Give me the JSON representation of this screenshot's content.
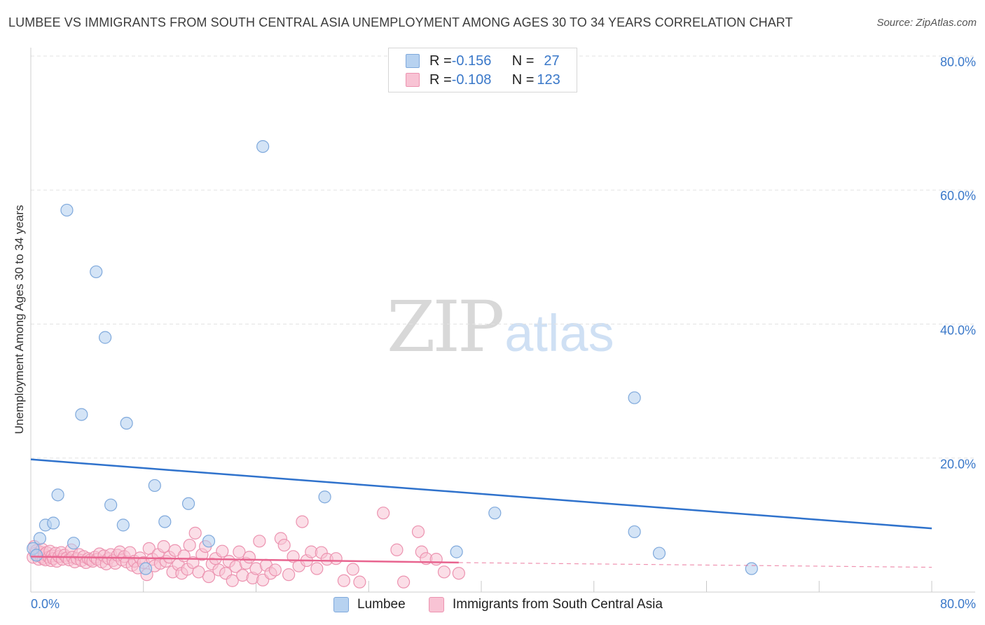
{
  "title": "LUMBEE VS IMMIGRANTS FROM SOUTH CENTRAL ASIA UNEMPLOYMENT AMONG AGES 30 TO 34 YEARS CORRELATION CHART",
  "source": "Source: ZipAtlas.com",
  "watermark": {
    "zip": "ZIP",
    "atlas": "atlas"
  },
  "colors": {
    "lumbee_fill": "#b7d2f0",
    "lumbee_stroke": "#7fa9dc",
    "lumbee_line": "#2f72cc",
    "immig_fill": "#f8c3d4",
    "immig_stroke": "#ec93b0",
    "immig_line": "#e8648f",
    "grid": "#e3e3e3",
    "tick_text": "#3a78c9"
  },
  "legend": {
    "rows": [
      {
        "r_label": "R = ",
        "r_value": "-0.156",
        "n_label": "N = ",
        "n_value": "27"
      },
      {
        "r_label": "R = ",
        "r_value": "-0.108",
        "n_label": "N = ",
        "n_value": "123"
      }
    ]
  },
  "chart_data": {
    "type": "scatter",
    "title": "LUMBEE VS IMMIGRANTS FROM SOUTH CENTRAL ASIA UNEMPLOYMENT AMONG AGES 30 TO 34 YEARS CORRELATION CHART",
    "xlabel": "",
    "ylabel": "Unemployment Among Ages 30 to 34 years",
    "xlim": [
      0,
      80
    ],
    "ylim": [
      0,
      82
    ],
    "x_tick_labels": [
      "0.0%",
      "80.0%"
    ],
    "y_ticks": [
      20,
      40,
      60,
      80
    ],
    "y_tick_labels": [
      "20.0%",
      "40.0%",
      "60.0%",
      "80.0%"
    ],
    "grid": true,
    "legend_position": "top-center",
    "series": [
      {
        "name": "Lumbee",
        "trend": {
          "x": [
            0,
            80
          ],
          "y": [
            19.8,
            9.5
          ]
        },
        "points": [
          [
            0.2,
            6.5
          ],
          [
            0.5,
            5.5
          ],
          [
            0.8,
            8.0
          ],
          [
            1.3,
            10.0
          ],
          [
            2.0,
            10.3
          ],
          [
            2.4,
            14.5
          ],
          [
            3.2,
            57.0
          ],
          [
            3.8,
            7.3
          ],
          [
            4.5,
            26.5
          ],
          [
            5.8,
            47.8
          ],
          [
            6.6,
            38.0
          ],
          [
            7.1,
            13.0
          ],
          [
            8.2,
            10.0
          ],
          [
            8.5,
            25.2
          ],
          [
            10.2,
            3.5
          ],
          [
            11.0,
            15.9
          ],
          [
            11.9,
            10.5
          ],
          [
            14.0,
            13.2
          ],
          [
            15.8,
            7.6
          ],
          [
            20.6,
            66.5
          ],
          [
            26.1,
            14.2
          ],
          [
            37.8,
            6.0
          ],
          [
            41.2,
            11.8
          ],
          [
            53.6,
            29.0
          ],
          [
            53.6,
            9.0
          ],
          [
            55.8,
            5.8
          ],
          [
            64.0,
            3.5
          ]
        ]
      },
      {
        "name": "Immigrants from South Central Asia",
        "trend": {
          "x": [
            0,
            38
          ],
          "y": [
            5.3,
            4.4
          ]
        },
        "trend_dashed": {
          "x": [
            38,
            80
          ],
          "y": [
            4.4,
            3.7
          ]
        },
        "points": [
          [
            0.2,
            5.2
          ],
          [
            0.3,
            6.8
          ],
          [
            0.4,
            5.8
          ],
          [
            0.5,
            6.2
          ],
          [
            0.6,
            5.5
          ],
          [
            0.7,
            4.9
          ],
          [
            0.8,
            6.0
          ],
          [
            0.9,
            5.3
          ],
          [
            1.0,
            6.4
          ],
          [
            1.1,
            5.0
          ],
          [
            1.2,
            5.6
          ],
          [
            1.3,
            4.8
          ],
          [
            1.4,
            5.9
          ],
          [
            1.6,
            5.2
          ],
          [
            1.7,
            6.1
          ],
          [
            1.8,
            4.7
          ],
          [
            1.9,
            5.4
          ],
          [
            2.0,
            5.0
          ],
          [
            2.2,
            5.8
          ],
          [
            2.3,
            4.6
          ],
          [
            2.5,
            5.3
          ],
          [
            2.7,
            5.9
          ],
          [
            2.8,
            4.9
          ],
          [
            3.0,
            5.5
          ],
          [
            3.2,
            5.1
          ],
          [
            3.4,
            4.8
          ],
          [
            3.6,
            6.3
          ],
          [
            3.7,
            5.2
          ],
          [
            3.9,
            4.5
          ],
          [
            4.1,
            5.0
          ],
          [
            4.3,
            5.6
          ],
          [
            4.5,
            4.7
          ],
          [
            4.7,
            5.3
          ],
          [
            4.9,
            4.4
          ],
          [
            5.1,
            5.0
          ],
          [
            5.3,
            4.8
          ],
          [
            5.5,
            4.6
          ],
          [
            5.7,
            5.2
          ],
          [
            5.9,
            4.9
          ],
          [
            6.1,
            5.7
          ],
          [
            6.3,
            4.5
          ],
          [
            6.5,
            5.4
          ],
          [
            6.7,
            4.2
          ],
          [
            6.9,
            5.0
          ],
          [
            7.1,
            5.6
          ],
          [
            7.3,
            4.7
          ],
          [
            7.5,
            4.3
          ],
          [
            7.7,
            5.5
          ],
          [
            7.9,
            6.0
          ],
          [
            8.1,
            4.8
          ],
          [
            8.3,
            5.3
          ],
          [
            8.5,
            4.5
          ],
          [
            8.8,
            5.9
          ],
          [
            9.0,
            4.0
          ],
          [
            9.2,
            4.6
          ],
          [
            9.5,
            3.6
          ],
          [
            9.7,
            5.1
          ],
          [
            10.0,
            4.4
          ],
          [
            10.3,
            2.6
          ],
          [
            10.5,
            6.5
          ],
          [
            10.8,
            4.9
          ],
          [
            11.0,
            3.9
          ],
          [
            11.3,
            5.6
          ],
          [
            11.5,
            4.3
          ],
          [
            11.8,
            6.8
          ],
          [
            12.0,
            4.6
          ],
          [
            12.3,
            5.2
          ],
          [
            12.6,
            3.0
          ],
          [
            12.8,
            6.2
          ],
          [
            13.1,
            4.1
          ],
          [
            13.4,
            2.8
          ],
          [
            13.6,
            5.4
          ],
          [
            13.9,
            3.4
          ],
          [
            14.1,
            7.0
          ],
          [
            14.4,
            4.4
          ],
          [
            14.6,
            8.8
          ],
          [
            14.9,
            3.0
          ],
          [
            15.2,
            5.6
          ],
          [
            15.5,
            6.8
          ],
          [
            15.8,
            2.3
          ],
          [
            16.1,
            4.2
          ],
          [
            16.4,
            5.0
          ],
          [
            16.7,
            3.3
          ],
          [
            17.0,
            6.1
          ],
          [
            17.3,
            2.8
          ],
          [
            17.6,
            4.6
          ],
          [
            17.9,
            1.7
          ],
          [
            18.2,
            3.8
          ],
          [
            18.5,
            6.0
          ],
          [
            18.8,
            2.5
          ],
          [
            19.1,
            4.3
          ],
          [
            19.4,
            5.2
          ],
          [
            19.7,
            2.1
          ],
          [
            20.0,
            3.5
          ],
          [
            20.3,
            7.6
          ],
          [
            20.6,
            1.8
          ],
          [
            20.9,
            4.0
          ],
          [
            21.3,
            2.8
          ],
          [
            21.7,
            3.3
          ],
          [
            22.2,
            8.0
          ],
          [
            22.5,
            7.0
          ],
          [
            22.9,
            2.6
          ],
          [
            23.3,
            5.3
          ],
          [
            23.8,
            3.9
          ],
          [
            24.1,
            10.5
          ],
          [
            24.5,
            4.7
          ],
          [
            24.9,
            6.0
          ],
          [
            25.4,
            3.5
          ],
          [
            25.8,
            5.9
          ],
          [
            26.3,
            4.9
          ],
          [
            27.1,
            5.0
          ],
          [
            27.8,
            1.7
          ],
          [
            28.6,
            3.4
          ],
          [
            29.2,
            1.5
          ],
          [
            31.3,
            11.8
          ],
          [
            32.5,
            6.3
          ],
          [
            33.1,
            1.5
          ],
          [
            34.4,
            9.0
          ],
          [
            34.7,
            6.0
          ],
          [
            35.1,
            5.0
          ],
          [
            36.0,
            4.9
          ],
          [
            36.7,
            3.0
          ],
          [
            38.0,
            2.8
          ]
        ]
      }
    ]
  },
  "bottom_legend": [
    {
      "label": "Lumbee"
    },
    {
      "label": "Immigrants from South Central Asia"
    }
  ]
}
